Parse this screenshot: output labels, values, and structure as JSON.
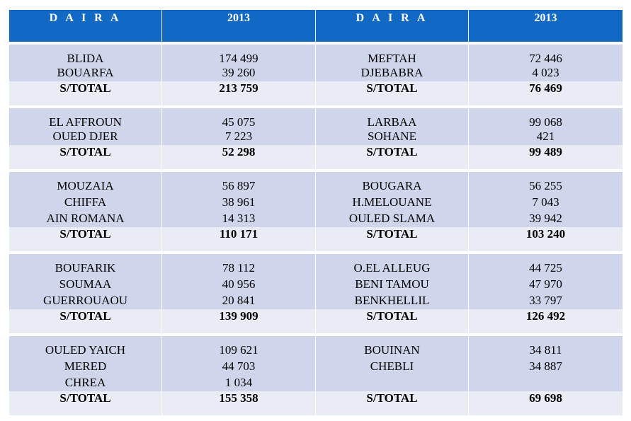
{
  "headers": [
    "D A I R A",
    "2013",
    "D A I R A",
    "2013"
  ],
  "groups": [
    {
      "rows": [
        [
          "BLIDA",
          "174 499",
          "MEFTAH",
          "72 446"
        ],
        [
          "BOUARFA",
          "39 260",
          "DJEBABRA",
          "4 023"
        ]
      ],
      "subtotal": [
        "S/TOTAL",
        "213 759",
        "S/TOTAL",
        "76 469"
      ]
    },
    {
      "rows": [
        [
          "EL AFFROUN",
          "45 075",
          "LARBAA",
          "99 068"
        ],
        [
          "OUED DJER",
          "7 223",
          "SOHANE",
          "421"
        ]
      ],
      "subtotal": [
        "S/TOTAL",
        "52 298",
        "S/TOTAL",
        "99 489"
      ]
    },
    {
      "rows": [
        [
          "MOUZAIA",
          "56 897",
          "BOUGARA",
          "56 255"
        ],
        [
          "CHIFFA",
          "38 961",
          "H.MELOUANE",
          "7 043"
        ],
        [
          "AIN ROMANA",
          "14 313",
          "OULED SLAMA",
          "39 942"
        ]
      ],
      "subtotal": [
        "S/TOTAL",
        "110 171",
        "S/TOTAL",
        "103 240"
      ]
    },
    {
      "rows": [
        [
          "BOUFARIK",
          "78 112",
          "O.EL ALLEUG",
          "44 725"
        ],
        [
          "SOUMAA",
          "40 956",
          "BENI TAMOU",
          "47 970"
        ],
        [
          "GUERROUAOU",
          "20 841",
          "BENKHELLIL",
          "33 797"
        ]
      ],
      "subtotal": [
        "S/TOTAL",
        "139 909",
        "S/TOTAL",
        "126 492"
      ]
    },
    {
      "rows": [
        [
          "OULED YAICH",
          "109 621",
          "BOUINAN",
          "34 811"
        ],
        [
          "MERED",
          "44 703",
          "CHEBLI",
          "34 887"
        ],
        [
          "CHREA",
          "1 034",
          "",
          ""
        ]
      ],
      "subtotal": [
        "S/TOTAL",
        "155 358",
        "S/TOTAL",
        "69 698"
      ]
    }
  ]
}
